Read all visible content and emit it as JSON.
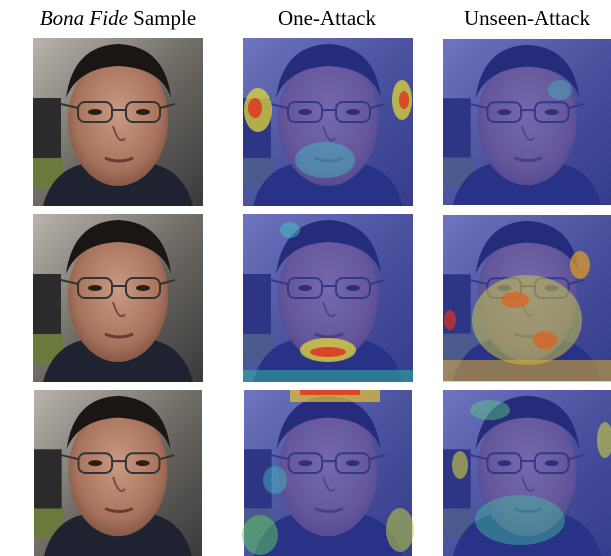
{
  "headers": [
    {
      "italic": "Bona Fide",
      "text": "Sample"
    },
    {
      "text": "One-Attack"
    },
    {
      "text": "Unseen-Attack"
    }
  ]
}
